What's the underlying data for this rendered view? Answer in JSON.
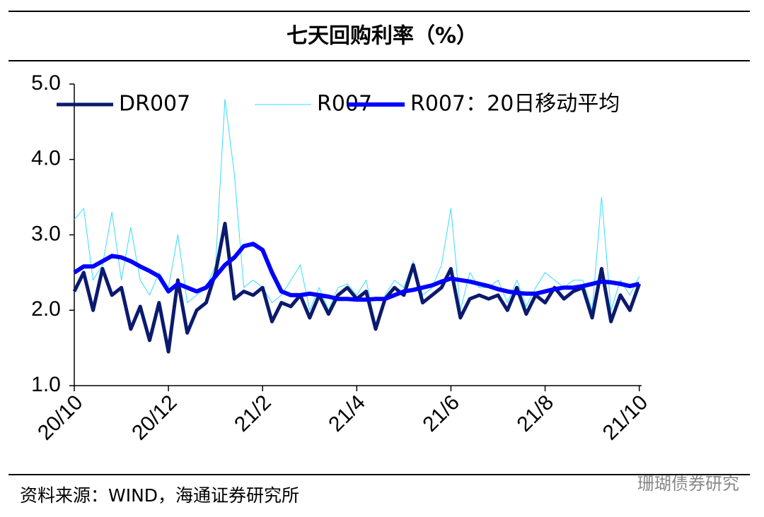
{
  "chart_data": {
    "type": "line",
    "title": "七天回购利率（%）",
    "source": "资料来源：WIND，海通证券研究所",
    "watermark": "珊瑚债券研究",
    "x": [
      0,
      0.2,
      0.4,
      0.6,
      0.8,
      1,
      1.2,
      1.4,
      1.6,
      1.8,
      2,
      2.2,
      2.4,
      2.6,
      2.8,
      3,
      3.2,
      3.4,
      3.6,
      3.8,
      4,
      4.2,
      4.4,
      4.6,
      4.8,
      5,
      5.2,
      5.4,
      5.6,
      5.8,
      6,
      6.2,
      6.4,
      6.6,
      6.8,
      7,
      7.2,
      7.4,
      7.6,
      7.8,
      8,
      8.2,
      8.4,
      8.6,
      8.8,
      9,
      9.2,
      9.4,
      9.6,
      9.8,
      10,
      10.2,
      10.4,
      10.6,
      10.8,
      11,
      11.2,
      11.4,
      11.6,
      11.8,
      12
    ],
    "series": [
      {
        "name": "DR007",
        "color": "#0b1a6e",
        "width": 5,
        "values": [
          2.25,
          2.5,
          2.0,
          2.55,
          2.2,
          2.3,
          1.75,
          2.05,
          1.6,
          2.1,
          1.45,
          2.4,
          1.7,
          2.0,
          2.1,
          2.5,
          3.15,
          2.15,
          2.25,
          2.2,
          2.3,
          1.85,
          2.1,
          2.05,
          2.2,
          1.9,
          2.2,
          1.95,
          2.2,
          2.3,
          2.15,
          2.25,
          1.75,
          2.15,
          2.3,
          2.2,
          2.6,
          2.1,
          2.2,
          2.3,
          2.55,
          1.9,
          2.15,
          2.2,
          2.15,
          2.2,
          2.0,
          2.3,
          1.95,
          2.2,
          2.1,
          2.3,
          2.15,
          2.25,
          2.3,
          1.9,
          2.55,
          1.85,
          2.2,
          2.0,
          2.35
        ]
      },
      {
        "name": "R007",
        "color": "#33ddff",
        "width": 1,
        "values": [
          3.2,
          3.35,
          2.4,
          2.6,
          3.3,
          2.4,
          3.1,
          2.4,
          2.2,
          2.5,
          2.3,
          3.0,
          2.1,
          2.2,
          2.3,
          2.6,
          4.8,
          3.8,
          2.3,
          2.4,
          2.3,
          2.1,
          2.2,
          2.4,
          2.6,
          2.0,
          2.3,
          2.0,
          2.3,
          2.35,
          2.2,
          2.4,
          1.8,
          2.2,
          2.4,
          2.3,
          2.65,
          2.2,
          2.3,
          2.6,
          3.35,
          2.0,
          2.5,
          2.3,
          2.3,
          2.4,
          2.1,
          2.4,
          2.05,
          2.3,
          2.5,
          2.4,
          2.3,
          2.4,
          2.4,
          2.0,
          3.5,
          2.0,
          2.4,
          2.2,
          2.45
        ]
      },
      {
        "name": "R007：20日移动平均",
        "color": "#0000ff",
        "width": 6,
        "values": [
          2.5,
          2.58,
          2.58,
          2.65,
          2.72,
          2.7,
          2.65,
          2.58,
          2.52,
          2.45,
          2.25,
          2.35,
          2.3,
          2.25,
          2.3,
          2.45,
          2.6,
          2.7,
          2.85,
          2.88,
          2.8,
          2.5,
          2.25,
          2.2,
          2.2,
          2.22,
          2.2,
          2.18,
          2.15,
          2.15,
          2.14,
          2.14,
          2.15,
          2.15,
          2.2,
          2.25,
          2.27,
          2.3,
          2.33,
          2.38,
          2.42,
          2.4,
          2.38,
          2.35,
          2.32,
          2.28,
          2.25,
          2.23,
          2.22,
          2.22,
          2.25,
          2.28,
          2.3,
          2.3,
          2.32,
          2.35,
          2.38,
          2.37,
          2.35,
          2.32,
          2.35
        ]
      }
    ],
    "xlim": [
      0,
      12.05
    ],
    "xticks": [
      {
        "value": 0,
        "label": "20/10"
      },
      {
        "value": 2,
        "label": "20/12"
      },
      {
        "value": 4,
        "label": "21/2"
      },
      {
        "value": 6,
        "label": "21/4"
      },
      {
        "value": 8,
        "label": "21/6"
      },
      {
        "value": 10,
        "label": "21/8"
      },
      {
        "value": 12,
        "label": "21/10"
      }
    ],
    "ylim": [
      1,
      5
    ],
    "yticks": [
      {
        "value": 1,
        "label": "1.0"
      },
      {
        "value": 2,
        "label": "2.0"
      },
      {
        "value": 3,
        "label": "3.0"
      },
      {
        "value": 4,
        "label": "4.0"
      },
      {
        "value": 5,
        "label": "5.0"
      }
    ]
  }
}
